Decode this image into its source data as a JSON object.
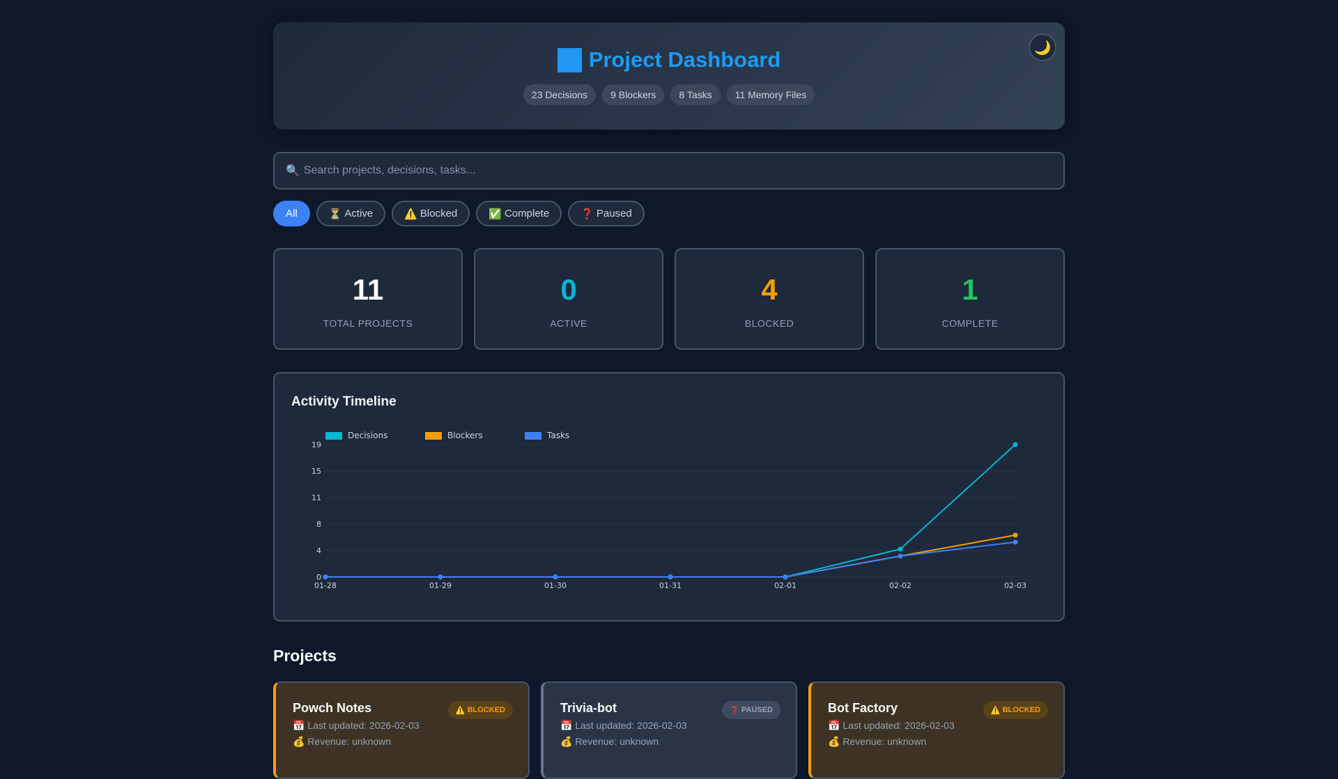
{
  "header": {
    "icon": "blue-square-icon",
    "title": "Project Dashboard",
    "pills": [
      "23 Decisions",
      "9 Blockers",
      "8 Tasks",
      "11 Memory Files"
    ],
    "theme_icon": "🌙"
  },
  "search": {
    "icon": "🔍",
    "placeholder": "Search projects, decisions, tasks..."
  },
  "filters": [
    {
      "icon": "",
      "label": "All",
      "active": true
    },
    {
      "icon": "⏳",
      "label": "Active"
    },
    {
      "icon": "⚠️",
      "label": "Blocked"
    },
    {
      "icon": "✅",
      "label": "Complete"
    },
    {
      "icon": "❓",
      "label": "Paused"
    }
  ],
  "stats": [
    {
      "value": "11",
      "label": "TOTAL PROJECTS",
      "color": "#f8fafc"
    },
    {
      "value": "0",
      "label": "ACTIVE",
      "color": "#06b6d4"
    },
    {
      "value": "4",
      "label": "BLOCKED",
      "color": "#f59e0b"
    },
    {
      "value": "1",
      "label": "COMPLETE",
      "color": "#22c55e"
    }
  ],
  "chart_data": {
    "type": "line",
    "title": "Activity Timeline",
    "categories": [
      "01-28",
      "01-29",
      "01-30",
      "01-31",
      "02-01",
      "02-02",
      "02-03"
    ],
    "series": [
      {
        "name": "Decisions",
        "color": "#06b6d4",
        "values": [
          0,
          0,
          0,
          0,
          0,
          4,
          19
        ]
      },
      {
        "name": "Blockers",
        "color": "#f59e0b",
        "values": [
          0,
          0,
          0,
          0,
          0,
          3,
          6
        ]
      },
      {
        "name": "Tasks",
        "color": "#3b82f6",
        "values": [
          0,
          0,
          0,
          0,
          0,
          3,
          5
        ]
      }
    ],
    "yticks": [
      "0",
      "4",
      "8",
      "11",
      "15",
      "19"
    ],
    "ylim": [
      0,
      19
    ],
    "grid": true,
    "legend": "top-left"
  },
  "projects": {
    "heading": "Projects",
    "items": [
      {
        "name": "Powch Notes",
        "status": "blocked",
        "badge_icon": "⚠️",
        "badge": "BLOCKED",
        "updated": "📅 Last updated: 2026-02-03",
        "revenue": "💰 Revenue: unknown"
      },
      {
        "name": "Trivia-bot",
        "status": "paused",
        "badge_icon": "❓",
        "badge": "PAUSED",
        "updated": "📅 Last updated: 2026-02-03",
        "revenue": "💰 Revenue: unknown"
      },
      {
        "name": "Bot Factory",
        "status": "blocked",
        "badge_icon": "⚠️",
        "badge": "BLOCKED",
        "updated": "📅 Last updated: 2026-02-03",
        "revenue": "💰 Revenue: unknown"
      }
    ]
  }
}
